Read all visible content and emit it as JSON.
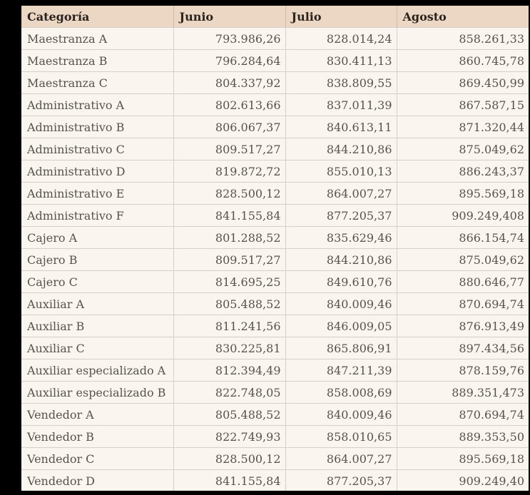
{
  "table": {
    "columns": [
      "Categoría",
      "Junio",
      "Julio",
      "Agosto"
    ],
    "rows": [
      [
        "Maestranza A",
        "793.986,26",
        "828.014,24",
        "858.261,33"
      ],
      [
        "Maestranza B",
        "796.284,64",
        "830.411,13",
        "860.745,78"
      ],
      [
        "Maestranza C",
        "804.337,92",
        "838.809,55",
        "869.450,99"
      ],
      [
        "Administrativo A",
        "802.613,66",
        "837.011,39",
        "867.587,15"
      ],
      [
        "Administrativo B",
        "806.067,37",
        "840.613,11",
        "871.320,44"
      ],
      [
        "Administrativo C",
        "809.517,27",
        "844.210,86",
        "875.049,62"
      ],
      [
        "Administrativo D",
        "819.872,72",
        "855.010,13",
        "886.243,37"
      ],
      [
        "Administrativo E",
        "828.500,12",
        "864.007,27",
        "895.569,18"
      ],
      [
        "Administrativo F",
        "841.155,84",
        "877.205,37",
        "909.249,408"
      ],
      [
        "Cajero A",
        "801.288,52",
        "835.629,46",
        "866.154,74"
      ],
      [
        "Cajero B",
        "809.517,27",
        "844.210,86",
        "875.049,62"
      ],
      [
        "Cajero C",
        "814.695,25",
        "849.610,76",
        "880.646,77"
      ],
      [
        "Auxiliar A",
        "805.488,52",
        "840.009,46",
        "870.694,74"
      ],
      [
        "Auxiliar B",
        "811.241,56",
        "846.009,05",
        "876.913,49"
      ],
      [
        "Auxiliar C",
        "830.225,81",
        "865.806,91",
        "897.434,56"
      ],
      [
        "Auxiliar especializado A",
        "812.394,49",
        "847.211,39",
        "878.159,76"
      ],
      [
        "Auxiliar especializado B",
        "822.748,05",
        "858.008,69",
        "889.351,473"
      ],
      [
        "Vendedor A",
        "805.488,52",
        "840.009,46",
        "870.694,74"
      ],
      [
        "Vendedor B",
        "822.749,93",
        "858.010,65",
        "889.353,50"
      ],
      [
        "Vendedor C",
        "828.500,12",
        "864.007,27",
        "895.569,18"
      ],
      [
        "Vendedor D",
        "841.155,84",
        "877.205,37",
        "909.249,40"
      ]
    ]
  },
  "chart_data": {
    "type": "table",
    "title": "",
    "categories": [
      "Maestranza A",
      "Maestranza B",
      "Maestranza C",
      "Administrativo A",
      "Administrativo B",
      "Administrativo C",
      "Administrativo D",
      "Administrativo E",
      "Administrativo F",
      "Cajero A",
      "Cajero B",
      "Cajero C",
      "Auxiliar A",
      "Auxiliar B",
      "Auxiliar C",
      "Auxiliar especializado A",
      "Auxiliar especializado B",
      "Vendedor A",
      "Vendedor B",
      "Vendedor C",
      "Vendedor D"
    ],
    "series": [
      {
        "name": "Junio",
        "values": [
          793986.26,
          796284.64,
          804337.92,
          802613.66,
          806067.37,
          809517.27,
          819872.72,
          828500.12,
          841155.84,
          801288.52,
          809517.27,
          814695.25,
          805488.52,
          811241.56,
          830225.81,
          812394.49,
          822748.05,
          805488.52,
          822749.93,
          828500.12,
          841155.84
        ]
      },
      {
        "name": "Julio",
        "values": [
          828014.24,
          830411.13,
          838809.55,
          837011.39,
          840613.11,
          844210.86,
          855010.13,
          864007.27,
          877205.37,
          835629.46,
          844210.86,
          849610.76,
          840009.46,
          846009.05,
          865806.91,
          847211.39,
          858008.69,
          840009.46,
          858010.65,
          864007.27,
          877205.37
        ]
      },
      {
        "name": "Agosto",
        "values": [
          858261.33,
          860745.78,
          869450.99,
          867587.15,
          871320.44,
          875049.62,
          886243.37,
          895569.18,
          909249.408,
          866154.74,
          875049.62,
          880646.77,
          870694.74,
          876913.49,
          897434.56,
          878159.76,
          889351.473,
          870694.74,
          889353.5,
          895569.18,
          909249.4
        ]
      }
    ],
    "number_format": "es (thousands '.', decimals ',')"
  },
  "colors": {
    "page_bg": "#000000",
    "header_bg": "#ecd7c4",
    "row_bg": "#faf6ef",
    "border": "#d4d1cc",
    "header_border": "#ccbcab",
    "header_text": "#2b241e",
    "body_text": "#57524d"
  }
}
